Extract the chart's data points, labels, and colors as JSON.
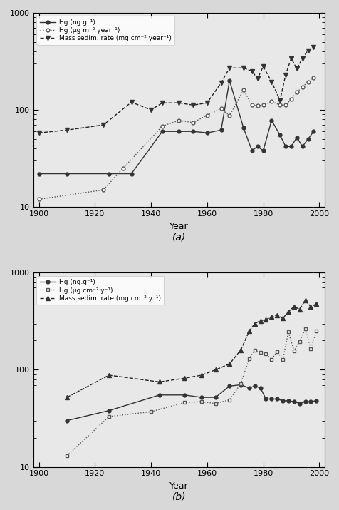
{
  "panel_a": {
    "hg_conc": {
      "x": [
        1900,
        1910,
        1925,
        1933,
        1944,
        1950,
        1955,
        1960,
        1965,
        1968,
        1973,
        1976,
        1978,
        1980,
        1983,
        1986,
        1988,
        1990,
        1992,
        1994,
        1996,
        1998
      ],
      "y": [
        22,
        22,
        22,
        22,
        60,
        60,
        60,
        58,
        62,
        200,
        65,
        38,
        42,
        38,
        78,
        55,
        42,
        42,
        52,
        42,
        50,
        60
      ],
      "label": "Hg (ng g⁻¹)",
      "linestyle": "-",
      "color": "#333333",
      "marker": "o",
      "markerfacecolor": "#333333",
      "markeredgecolor": "#333333",
      "linewidth": 1.0,
      "markersize": 3.5
    },
    "hg_flux": {
      "x": [
        1900,
        1923,
        1930,
        1944,
        1950,
        1955,
        1960,
        1965,
        1968,
        1973,
        1976,
        1978,
        1980,
        1983,
        1986,
        1988,
        1990,
        1992,
        1994,
        1996,
        1998
      ],
      "y": [
        12,
        15,
        25,
        68,
        78,
        74,
        88,
        103,
        87,
        160,
        112,
        110,
        112,
        122,
        112,
        112,
        128,
        152,
        172,
        195,
        215
      ],
      "label": "Hg (μg m⁻² year⁻¹)",
      "linestyle": ":",
      "color": "#555555",
      "marker": "o",
      "markerfacecolor": "white",
      "markeredgecolor": "#555555",
      "linewidth": 1.0,
      "markersize": 3.5
    },
    "mass_sed": {
      "x": [
        1900,
        1910,
        1923,
        1933,
        1940,
        1944,
        1950,
        1955,
        1960,
        1965,
        1968,
        1973,
        1976,
        1978,
        1980,
        1983,
        1986,
        1988,
        1990,
        1992,
        1994,
        1996,
        1998
      ],
      "y": [
        58,
        62,
        70,
        120,
        100,
        118,
        118,
        112,
        118,
        190,
        270,
        270,
        250,
        210,
        280,
        195,
        125,
        230,
        340,
        265,
        340,
        410,
        440
      ],
      "label": "Mass sedim. rate (mg cm⁻² year⁻¹)",
      "linestyle": "--",
      "color": "#222222",
      "marker": "v",
      "markerfacecolor": "#333333",
      "markeredgecolor": "#333333",
      "linewidth": 1.0,
      "markersize": 4.5
    },
    "xlabel": "Year",
    "xlim": [
      1898,
      2002
    ],
    "ylim": [
      10,
      1000
    ],
    "xticks": [
      1900,
      1920,
      1940,
      1960,
      1980,
      2000
    ],
    "label": "(a)"
  },
  "panel_b": {
    "hg_conc": {
      "x": [
        1910,
        1925,
        1943,
        1952,
        1958,
        1963,
        1968,
        1972,
        1975,
        1977,
        1979,
        1981,
        1983,
        1985,
        1987,
        1989,
        1991,
        1993,
        1995,
        1997,
        1999
      ],
      "y": [
        30,
        38,
        55,
        55,
        52,
        52,
        68,
        70,
        65,
        68,
        65,
        50,
        50,
        50,
        48,
        48,
        47,
        45,
        47,
        47,
        48
      ],
      "label": "Hg (ng.g⁻¹)",
      "linestyle": "-",
      "color": "#333333",
      "marker": "o",
      "markerfacecolor": "#333333",
      "markeredgecolor": "#333333",
      "linewidth": 1.0,
      "markersize": 3.5
    },
    "hg_flux": {
      "x": [
        1910,
        1925,
        1940,
        1952,
        1958,
        1963,
        1968,
        1972,
        1975,
        1977,
        1979,
        1981,
        1983,
        1985,
        1987,
        1989,
        1991,
        1993,
        1995,
        1997,
        1999
      ],
      "y": [
        13,
        33,
        37,
        46,
        47,
        45,
        49,
        72,
        130,
        160,
        150,
        145,
        128,
        155,
        128,
        245,
        157,
        195,
        265,
        165,
        250
      ],
      "label": "Hg (μg.cm⁻².y⁻¹)",
      "linestyle": ":",
      "color": "#555555",
      "marker": "s",
      "markerfacecolor": "white",
      "markeredgecolor": "#555555",
      "linewidth": 1.0,
      "markersize": 3.5
    },
    "mass_sed": {
      "x": [
        1910,
        1925,
        1943,
        1952,
        1958,
        1963,
        1968,
        1972,
        1975,
        1977,
        1979,
        1981,
        1983,
        1985,
        1987,
        1989,
        1991,
        1993,
        1995,
        1997,
        1999
      ],
      "y": [
        52,
        88,
        75,
        82,
        88,
        100,
        115,
        160,
        250,
        300,
        320,
        330,
        350,
        365,
        340,
        395,
        450,
        420,
        520,
        445,
        480
      ],
      "label": "Mass sedim. rate (mg.cm⁻².y⁻¹)",
      "linestyle": "--",
      "color": "#222222",
      "marker": "^",
      "markerfacecolor": "#333333",
      "markeredgecolor": "#333333",
      "linewidth": 1.0,
      "markersize": 4.5
    },
    "xlabel": "Year",
    "xlim": [
      1898,
      2002
    ],
    "ylim": [
      10,
      1000
    ],
    "xticks": [
      1900,
      1920,
      1940,
      1960,
      1980,
      2000
    ],
    "label": "(b)"
  },
  "bg_color": "#f0f0f0",
  "fig_bg": "#e8e8e8"
}
